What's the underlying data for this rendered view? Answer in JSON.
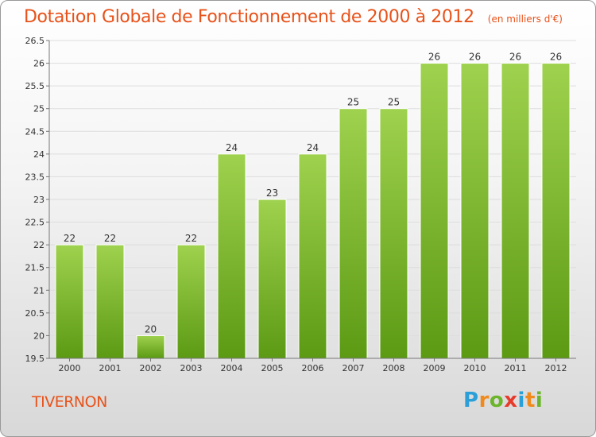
{
  "title": "Dotation Globale de Fonctionnement de 2000 à 2012",
  "unit_note": "(en milliers d'€)",
  "commune": "TIVERNON",
  "logo": {
    "text": "Proxiti",
    "letter_colors": [
      "#2a9fd8",
      "#f08a1c",
      "#6bb52b",
      "#e83a2a",
      "#2a9fd8",
      "#f08a1c",
      "#6bb52b"
    ]
  },
  "chart_data": {
    "type": "bar",
    "categories": [
      "2000",
      "2001",
      "2002",
      "2003",
      "2004",
      "2005",
      "2006",
      "2007",
      "2008",
      "2009",
      "2010",
      "2011",
      "2012"
    ],
    "values": [
      22,
      22,
      20,
      22,
      24,
      23,
      24,
      25,
      25,
      26,
      26,
      26,
      26
    ],
    "value_labels": [
      "22",
      "22",
      "20",
      "22",
      "24",
      "23",
      "24",
      "25",
      "25",
      "26",
      "26",
      "26",
      "26"
    ],
    "ylim": [
      19.5,
      26.5
    ],
    "yticks": [
      19.5,
      20,
      20.5,
      21,
      21.5,
      22,
      22.5,
      23,
      23.5,
      24,
      24.5,
      25,
      25.5,
      26,
      26.5
    ],
    "ytick_labels": [
      "19.5",
      "20",
      "20.5",
      "21",
      "21.5",
      "22",
      "22.5",
      "23",
      "23.5",
      "24",
      "24.5",
      "25",
      "25.5",
      "26",
      "26.5"
    ],
    "grid": true,
    "bar_color_top": "#9fd24e",
    "bar_color_bottom": "#5c9a14"
  }
}
